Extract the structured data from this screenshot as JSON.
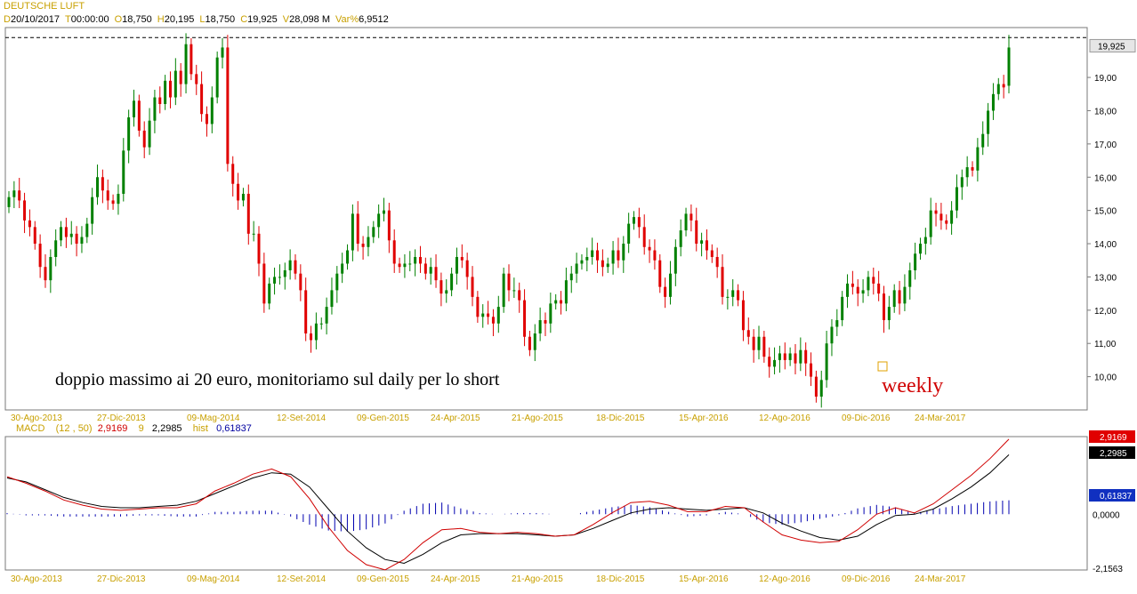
{
  "instrument": "DEUTSCHE LUFT",
  "ohlc": [
    {
      "key": "D",
      "value": "20/10/2017"
    },
    {
      "key": "T",
      "value": "00:00:00"
    },
    {
      "key": "O",
      "value": "18,750"
    },
    {
      "key": "H",
      "value": "20,195"
    },
    {
      "key": "L",
      "value": "18,750"
    },
    {
      "key": "C",
      "value": "19,925"
    },
    {
      "key": "V",
      "value": "28,098 M"
    },
    {
      "key": "Var%",
      "value": "6,9512"
    }
  ],
  "colors": {
    "up": "#008000",
    "down": "#e00000",
    "macd": "#d00000",
    "signal": "#000000",
    "hist": "#0000b0",
    "text_gold": "#c8a000"
  },
  "chart_data": [
    {
      "type": "candlestick",
      "title": "DEUTSCHE LUFT",
      "annotation": "doppio massimo ai 20 euro, monitoriamo sul daily per lo short",
      "annotation2": "weekly",
      "last_price_label": "19,925",
      "resistance_level": 20.2,
      "ylim": [
        9.0,
        20.5
      ],
      "yticks": [
        10,
        11,
        12,
        13,
        14,
        15,
        16,
        17,
        18,
        19
      ],
      "ytick_labels": [
        "10,00",
        "11,00",
        "12,00",
        "13,00",
        "14,00",
        "15,00",
        "16,00",
        "17,00",
        "18,00",
        "19,00"
      ],
      "xtick_labels": [
        "30-Ago-2013",
        "27-Dic-2013",
        "09-Mag-2014",
        "12-Set-2014",
        "09-Gen-2015",
        "24-Apr-2015",
        "21-Ago-2015",
        "18-Dic-2015",
        "15-Apr-2016",
        "12-Ago-2016",
        "09-Dic-2016",
        "24-Mar-2017"
      ],
      "grid": false,
      "close": [
        15.4,
        15.6,
        15.3,
        14.7,
        14.5,
        14.0,
        13.3,
        12.9,
        13.6,
        14.1,
        14.5,
        14.2,
        14.3,
        14.0,
        14.2,
        14.6,
        15.4,
        16.0,
        15.6,
        15.3,
        15.2,
        15.5,
        16.8,
        17.8,
        18.3,
        17.4,
        16.9,
        17.7,
        18.4,
        18.2,
        18.9,
        18.4,
        19.2,
        18.8,
        20.0,
        19.1,
        18.8,
        17.9,
        17.6,
        18.4,
        19.6,
        19.9,
        16.4,
        15.8,
        15.3,
        15.5,
        14.3,
        14.3,
        13.4,
        12.2,
        12.8,
        13.0,
        13.0,
        13.2,
        13.5,
        13.1,
        12.6,
        11.3,
        11.1,
        11.6,
        11.6,
        12.1,
        12.6,
        13.1,
        13.4,
        13.8,
        14.9,
        14.0,
        13.9,
        14.2,
        14.5,
        14.9,
        15.0,
        14.1,
        13.4,
        13.3,
        13.4,
        13.4,
        13.6,
        13.4,
        13.1,
        13.3,
        12.9,
        12.5,
        12.6,
        13.1,
        13.6,
        13.5,
        13.0,
        12.4,
        11.8,
        11.9,
        11.8,
        11.6,
        12.1,
        13.1,
        12.6,
        12.6,
        12.3,
        11.2,
        10.8,
        11.3,
        11.7,
        11.6,
        12.2,
        12.3,
        12.2,
        12.9,
        13.1,
        13.4,
        13.5,
        13.6,
        13.8,
        13.5,
        13.3,
        13.4,
        13.8,
        13.5,
        14.0,
        14.6,
        14.8,
        14.5,
        13.9,
        13.8,
        13.5,
        12.7,
        12.4,
        13.1,
        13.9,
        14.4,
        14.9,
        14.7,
        14.0,
        14.1,
        13.8,
        13.6,
        13.3,
        12.4,
        12.4,
        12.6,
        12.3,
        11.4,
        11.2,
        10.8,
        11.2,
        10.6,
        10.3,
        10.5,
        10.7,
        10.5,
        10.7,
        10.4,
        10.8,
        10.4,
        10.0,
        9.4,
        9.9,
        11.0,
        11.5,
        11.7,
        12.4,
        12.8,
        12.7,
        12.5,
        12.6,
        13.0,
        12.8,
        12.5,
        11.7,
        12.1,
        12.6,
        12.2,
        12.7,
        13.2,
        13.7,
        14.0,
        14.2,
        15.0,
        14.9,
        14.7,
        14.6,
        15.0,
        15.7,
        16.0,
        16.3,
        16.2,
        16.9,
        17.3,
        18.0,
        18.5,
        18.8,
        18.7,
        19.9
      ],
      "open": [
        15.1,
        15.4,
        15.6,
        15.3,
        14.7,
        14.5,
        14.0,
        13.3,
        12.9,
        13.6,
        14.1,
        14.5,
        14.2,
        14.3,
        14.0,
        14.2,
        14.6,
        15.4,
        16.0,
        15.6,
        15.3,
        15.2,
        15.5,
        16.8,
        17.8,
        18.3,
        17.4,
        16.9,
        17.7,
        18.4,
        18.2,
        18.9,
        18.4,
        19.2,
        18.8,
        20.0,
        19.1,
        18.8,
        17.9,
        17.6,
        18.4,
        19.6,
        19.9,
        16.4,
        15.8,
        15.3,
        15.5,
        14.3,
        14.3,
        13.4,
        12.2,
        12.8,
        13.0,
        13.0,
        13.2,
        13.5,
        13.1,
        12.6,
        11.3,
        11.1,
        11.6,
        11.6,
        12.1,
        12.6,
        13.1,
        13.4,
        13.8,
        14.9,
        14.0,
        13.9,
        14.2,
        14.5,
        14.9,
        15.0,
        14.1,
        13.4,
        13.3,
        13.4,
        13.4,
        13.6,
        13.4,
        13.1,
        13.3,
        12.9,
        12.5,
        12.6,
        13.1,
        13.6,
        13.5,
        13.0,
        12.4,
        11.8,
        11.9,
        11.8,
        11.6,
        12.1,
        13.1,
        12.6,
        12.6,
        12.3,
        11.2,
        10.8,
        11.3,
        11.7,
        11.6,
        12.2,
        12.3,
        12.2,
        12.9,
        13.1,
        13.4,
        13.5,
        13.6,
        13.8,
        13.5,
        13.3,
        13.4,
        13.8,
        13.5,
        14.0,
        14.6,
        14.8,
        14.5,
        13.9,
        13.8,
        13.5,
        12.7,
        12.4,
        13.1,
        13.9,
        14.4,
        14.9,
        14.7,
        14.0,
        14.1,
        13.8,
        13.6,
        13.3,
        12.4,
        12.4,
        12.6,
        12.3,
        11.4,
        11.2,
        10.8,
        11.2,
        10.6,
        10.3,
        10.5,
        10.7,
        10.5,
        10.7,
        10.4,
        10.8,
        10.4,
        10.0,
        9.4,
        9.9,
        11.0,
        11.5,
        11.7,
        12.4,
        12.8,
        12.7,
        12.5,
        12.6,
        13.0,
        12.8,
        12.5,
        11.7,
        12.1,
        12.6,
        12.2,
        12.7,
        13.2,
        13.7,
        14.0,
        14.2,
        15.0,
        14.9,
        14.7,
        14.6,
        15.0,
        15.7,
        16.0,
        16.3,
        16.2,
        16.9,
        17.3,
        18.0,
        18.5,
        18.8,
        18.75
      ]
    },
    {
      "type": "line",
      "title": "MACD",
      "params": "(12 , 50)",
      "macd_label": "2,9169",
      "signal_period": "9",
      "signal_label": "2,2985",
      "hist_label": "hist",
      "hist_value_label": "0,61837",
      "ylim": [
        -2.1563,
        3.0
      ],
      "ytick_labels": [
        "0,0000",
        "-2,1563"
      ],
      "xtick_labels": [
        "30-Ago-2013",
        "27-Dic-2013",
        "09-Mag-2014",
        "12-Set-2014",
        "09-Gen-2015",
        "24-Apr-2015",
        "21-Ago-2015",
        "18-Dic-2015",
        "15-Apr-2016",
        "12-Ago-2016",
        "09-Dic-2016",
        "24-Mar-2017"
      ],
      "series": [
        {
          "name": "MACD",
          "values": [
            1.45,
            1.2,
            0.9,
            0.55,
            0.35,
            0.2,
            0.15,
            0.2,
            0.25,
            0.25,
            0.4,
            0.9,
            1.2,
            1.55,
            1.75,
            1.45,
            0.6,
            -0.5,
            -1.4,
            -1.95,
            -2.15,
            -1.75,
            -1.1,
            -0.6,
            -0.55,
            -0.7,
            -0.75,
            -0.7,
            -0.75,
            -0.85,
            -0.8,
            -0.4,
            0.05,
            0.45,
            0.5,
            0.35,
            0.1,
            0.1,
            0.3,
            0.25,
            -0.3,
            -0.8,
            -1.0,
            -1.1,
            -1.05,
            -0.6,
            0.0,
            0.25,
            0.05,
            0.4,
            0.95,
            1.5,
            2.15,
            2.9
          ]
        },
        {
          "name": "Signal",
          "values": [
            1.4,
            1.25,
            0.95,
            0.65,
            0.45,
            0.3,
            0.25,
            0.25,
            0.3,
            0.35,
            0.5,
            0.8,
            1.1,
            1.4,
            1.6,
            1.55,
            1.05,
            0.2,
            -0.65,
            -1.3,
            -1.75,
            -1.9,
            -1.55,
            -1.1,
            -0.8,
            -0.75,
            -0.75,
            -0.75,
            -0.8,
            -0.85,
            -0.8,
            -0.55,
            -0.25,
            0.05,
            0.2,
            0.25,
            0.2,
            0.15,
            0.2,
            0.25,
            0.05,
            -0.35,
            -0.65,
            -0.9,
            -1.0,
            -0.85,
            -0.4,
            -0.05,
            0.0,
            0.2,
            0.6,
            1.05,
            1.6,
            2.3
          ]
        }
      ]
    }
  ]
}
